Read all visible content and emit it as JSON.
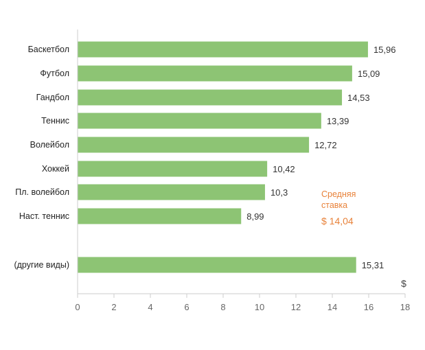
{
  "chart_data": {
    "type": "bar",
    "orientation": "horizontal",
    "categories": [
      "Баскетбол",
      "Футбол",
      "Гандбол",
      "Теннис",
      "Волейбол",
      "Хоккей",
      "Пл. волейбол",
      "Наст. теннис",
      "(другие виды)"
    ],
    "values": [
      15.96,
      15.09,
      14.53,
      13.39,
      12.72,
      10.42,
      10.3,
      8.99,
      15.31
    ],
    "value_labels": [
      "15,96",
      "15,09",
      "14,53",
      "13,39",
      "12,72",
      "10,42",
      "10,3",
      "8,99",
      "15,31"
    ],
    "x_ticks": [
      "0",
      "2",
      "4",
      "6",
      "8",
      "10",
      "12",
      "14",
      "16",
      "18"
    ],
    "xlim": [
      0,
      18
    ],
    "x_unit": "$",
    "bar_color": "#8dc474",
    "grid": false,
    "annotation": {
      "line1": "Средняя",
      "line2": "ставка",
      "value": "$ 14,04",
      "color": "#e8823a"
    }
  }
}
